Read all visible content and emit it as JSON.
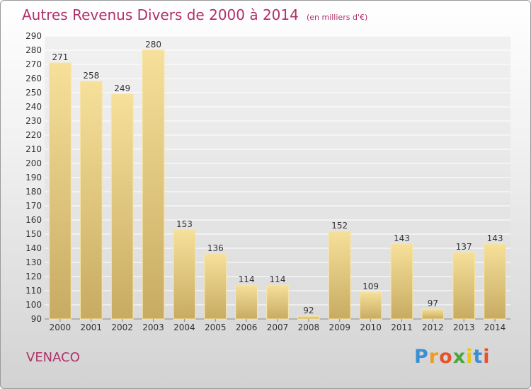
{
  "chart_data": {
    "type": "bar",
    "title": "Autres Revenus Divers de 2000 à 2014",
    "subtitle": "(en milliers d'€)",
    "categories": [
      "2000",
      "2001",
      "2002",
      "2003",
      "2004",
      "2005",
      "2006",
      "2007",
      "2008",
      "2009",
      "2010",
      "2011",
      "2012",
      "2013",
      "2014"
    ],
    "values": [
      271,
      258,
      249,
      280,
      153,
      136,
      114,
      114,
      92,
      152,
      109,
      143,
      97,
      137,
      143
    ],
    "ylim": [
      90,
      290
    ],
    "yticks": [
      90,
      100,
      110,
      120,
      130,
      140,
      150,
      160,
      170,
      180,
      190,
      200,
      210,
      220,
      230,
      240,
      250,
      260,
      270,
      280,
      290
    ],
    "grid": true,
    "colors": {
      "bar_light": "#f6e09a",
      "bar_dark": "#c8ab62",
      "title": "#b0306a",
      "grid": "#ffffff"
    }
  },
  "place_name": "VENACO",
  "logo": {
    "letters": [
      "P",
      "r",
      "o",
      "x",
      "i",
      "t",
      "i"
    ],
    "colors": [
      "#3d8fd4",
      "#f29a1c",
      "#e8522a",
      "#4aa63b",
      "#e8c520",
      "#3d8fd4",
      "#e8522a"
    ]
  }
}
